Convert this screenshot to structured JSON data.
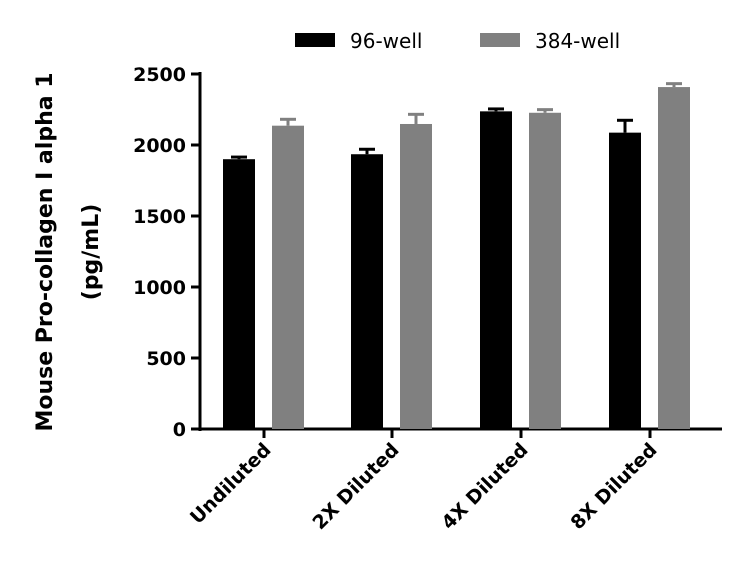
{
  "chart_data": {
    "type": "bar",
    "title": "",
    "xlabel": "",
    "ylabel": [
      "Mouse Pro-collagen I alpha 1",
      "(pg/mL)"
    ],
    "ylim": [
      0,
      2500
    ],
    "yticks": [
      "0",
      "500",
      "1000",
      "1500",
      "2000",
      "2500"
    ],
    "categories": [
      "Undiluted",
      "2X Diluted",
      "4X Diluted",
      "8X Diluted"
    ],
    "legend_position": "top",
    "grid": false,
    "series": [
      {
        "name": "96-well",
        "color": "#000000",
        "values": [
          1900,
          1935,
          2237,
          2087
        ],
        "error_upper": [
          1915,
          1970,
          2254,
          2174
        ]
      },
      {
        "name": "384-well",
        "color": "#808080",
        "values": [
          2136,
          2148,
          2227,
          2408
        ],
        "error_upper": [
          2181,
          2216,
          2249,
          2432
        ]
      }
    ]
  }
}
